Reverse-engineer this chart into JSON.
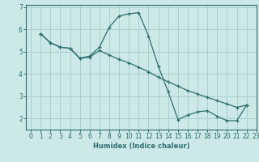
{
  "xlabel": "Humidex (Indice chaleur)",
  "bg_color": "#cce8e8",
  "grid_color": "#aacfcf",
  "line_color": "#2e6e6e",
  "xlim": [
    -0.5,
    23
  ],
  "ylim": [
    1.5,
    7.1
  ],
  "yticks": [
    2,
    3,
    4,
    5,
    6,
    7
  ],
  "xticks": [
    0,
    1,
    2,
    3,
    4,
    5,
    6,
    7,
    8,
    9,
    10,
    11,
    12,
    13,
    14,
    15,
    16,
    17,
    18,
    19,
    20,
    21,
    22,
    23
  ],
  "line1_x": [
    1,
    2,
    3,
    4,
    5,
    6,
    7,
    8,
    9,
    10,
    11,
    12,
    13,
    14,
    15,
    16,
    17,
    18,
    19,
    20,
    21,
    22
  ],
  "line1_y": [
    5.8,
    5.4,
    5.2,
    5.15,
    4.7,
    4.8,
    5.2,
    6.1,
    6.6,
    6.7,
    6.75,
    5.7,
    4.35,
    3.2,
    1.95,
    2.15,
    2.3,
    2.35,
    2.1,
    1.9,
    1.9,
    2.6
  ],
  "line2_x": [
    1,
    2,
    3,
    4,
    5,
    6,
    7,
    8,
    9,
    10,
    11,
    12,
    13,
    14,
    15,
    16,
    17,
    18,
    19,
    20,
    21,
    22
  ],
  "line2_y": [
    5.8,
    5.4,
    5.2,
    5.15,
    4.7,
    4.75,
    5.05,
    4.85,
    4.65,
    4.5,
    4.3,
    4.1,
    3.85,
    3.65,
    3.45,
    3.25,
    3.1,
    2.95,
    2.8,
    2.65,
    2.5,
    2.6
  ]
}
